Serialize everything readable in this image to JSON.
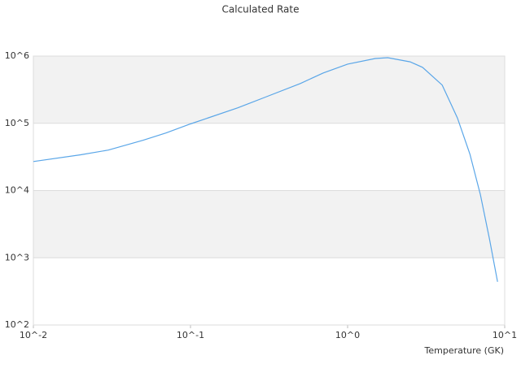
{
  "chart_data": {
    "type": "line",
    "title": "Calculated Rate",
    "xlabel": "Temperature (GK)",
    "x": [
      0.01,
      0.02,
      0.03,
      0.05,
      0.07,
      0.1,
      0.2,
      0.3,
      0.5,
      0.7,
      1,
      1.5,
      1.8,
      2.5,
      3,
      4,
      5,
      6,
      7,
      8,
      9
    ],
    "values": [
      27000,
      34000,
      40000,
      56000,
      72000,
      98000,
      170000,
      245000,
      390000,
      560000,
      760000,
      920000,
      945000,
      820000,
      680000,
      370000,
      120000,
      35000,
      8700,
      1900,
      440
    ],
    "color": "#5aa6e8",
    "xscale": "log",
    "yscale": "log",
    "xlim": [
      0.01,
      10
    ],
    "xticks": [
      {
        "value": 0.01,
        "label": "10^-2"
      },
      {
        "value": 0.1,
        "label": "10^-1"
      },
      {
        "value": 1,
        "label": "10^0"
      },
      {
        "value": 10,
        "label": "10^1"
      }
    ],
    "ylim": [
      100,
      1000000
    ],
    "yticks": [
      {
        "value": 100,
        "label": "10^2"
      },
      {
        "value": 1000,
        "label": "10^3"
      },
      {
        "value": 10000,
        "label": "10^4"
      },
      {
        "value": 100000,
        "label": "10^5"
      },
      {
        "value": 1000000,
        "label": "10^6"
      }
    ],
    "grid": true,
    "band_color": "#f2f2f2"
  }
}
